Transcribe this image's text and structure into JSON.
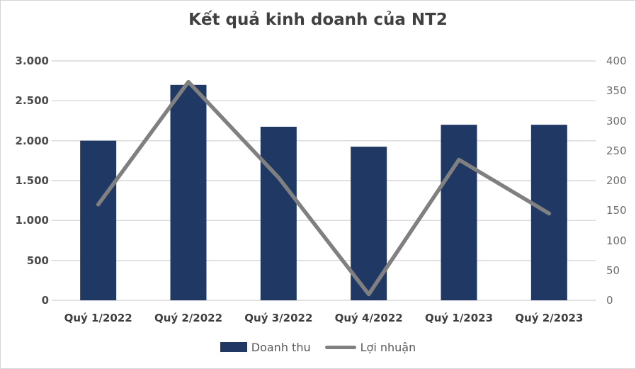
{
  "title": "Kết quả kinh doanh của NT2",
  "colors": {
    "bar": "#1F3864",
    "line": "#808080",
    "grid": "#D9D9D9",
    "title_text": "#404040",
    "left_axis_text": "#4D4D4D",
    "right_axis_text": "#6E6E6E",
    "x_label_text": "#3F3F3F",
    "legend_text": "#595959",
    "card_border": "#D4D4D4",
    "background": "#FFFFFF"
  },
  "chart_data": {
    "type": "bar+line",
    "title": "Kết quả kinh doanh của NT2",
    "categories": [
      "Quý 1/2022",
      "Quý 2/2022",
      "Quý 3/2022",
      "Quý 4/2022",
      "Quý 1/2023",
      "Quý 2/2023"
    ],
    "series": [
      {
        "name": "Doanh thu",
        "type": "bar",
        "axis": "left",
        "color": "#1F3864",
        "values": [
          2000,
          2700,
          2175,
          1925,
          2200,
          2200
        ]
      },
      {
        "name": "Lợi nhuận",
        "type": "line",
        "axis": "right",
        "color": "#808080",
        "values": [
          160,
          365,
          205,
          10,
          235,
          145
        ]
      }
    ],
    "left_axis": {
      "min": 0,
      "max": 3000,
      "tick_step": 500,
      "tick_values": [
        0,
        500,
        1000,
        1500,
        2000,
        2500,
        3000
      ],
      "tick_labels": [
        "0",
        "500",
        "1.000",
        "1.500",
        "2.000",
        "2.500",
        "3.000"
      ]
    },
    "right_axis": {
      "min": 0,
      "max": 400,
      "tick_step": 50,
      "tick_values": [
        0,
        50,
        100,
        150,
        200,
        250,
        300,
        350,
        400
      ],
      "tick_labels": [
        "0",
        "50",
        "100",
        "150",
        "200",
        "250",
        "300",
        "350",
        "400"
      ]
    },
    "grid": true,
    "legend_position": "bottom"
  },
  "legend": {
    "items": [
      {
        "label": "Doanh thu",
        "marker": "bar-swatch"
      },
      {
        "label": "Lợi nhuận",
        "marker": "line-swatch"
      }
    ]
  }
}
